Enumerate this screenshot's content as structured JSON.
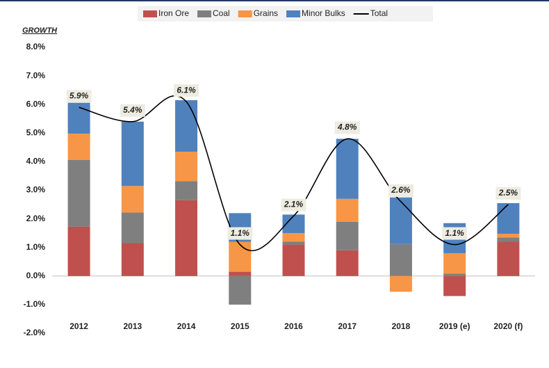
{
  "chart_data": {
    "type": "bar",
    "title": "GROWTH",
    "categories": [
      "2012",
      "2013",
      "2014",
      "2015",
      "2016",
      "2017",
      "2018",
      "2019 (e)",
      "2020 (f)"
    ],
    "series": [
      {
        "name": "Iron Ore",
        "color": "#c0504d",
        "values": [
          1.73,
          1.15,
          2.65,
          0.15,
          1.1,
          0.9,
          0,
          -0.7,
          1.2
        ]
      },
      {
        "name": "Coal",
        "color": "#7f7f7f",
        "values": [
          2.33,
          1.07,
          0.67,
          -1.0,
          0.1,
          1.0,
          1.12,
          0.08,
          0.15
        ]
      },
      {
        "name": "Grains",
        "color": "#f79646",
        "values": [
          0.92,
          0.93,
          1.03,
          1.05,
          0.3,
          0.8,
          -0.55,
          0.72,
          0.13
        ]
      },
      {
        "name": "Minor Bulks",
        "color": "#4f81bd",
        "values": [
          1.08,
          2.25,
          1.8,
          1.0,
          0.65,
          2.1,
          1.63,
          1.05,
          1.07
        ]
      },
      {
        "name": "Total",
        "type": "line",
        "color": "#000000",
        "values": [
          5.9,
          5.4,
          6.1,
          1.1,
          2.1,
          4.8,
          2.6,
          1.1,
          2.5
        ],
        "value_labels": [
          "5.9%",
          "5.4%",
          "6.1%",
          "1.1%",
          "2.1%",
          "4.8%",
          "2.6%",
          "1.1%",
          "2.5%"
        ]
      }
    ],
    "ylim": [
      -2.0,
      8.0
    ],
    "yticks": [
      {
        "value": -2,
        "label": "-2.0%"
      },
      {
        "value": -1,
        "label": "-1.0%"
      },
      {
        "value": 0,
        "label": "0.0%"
      },
      {
        "value": 1,
        "label": "1.0%"
      },
      {
        "value": 2,
        "label": "2.0%"
      },
      {
        "value": 3,
        "label": "3.0%"
      },
      {
        "value": 4,
        "label": "4.0%"
      },
      {
        "value": 5,
        "label": "5.0%"
      },
      {
        "value": 6,
        "label": "6.0%"
      },
      {
        "value": 7,
        "label": "7.0%"
      },
      {
        "value": 8,
        "label": "8.0%"
      }
    ],
    "grid": false,
    "legend": "top"
  }
}
